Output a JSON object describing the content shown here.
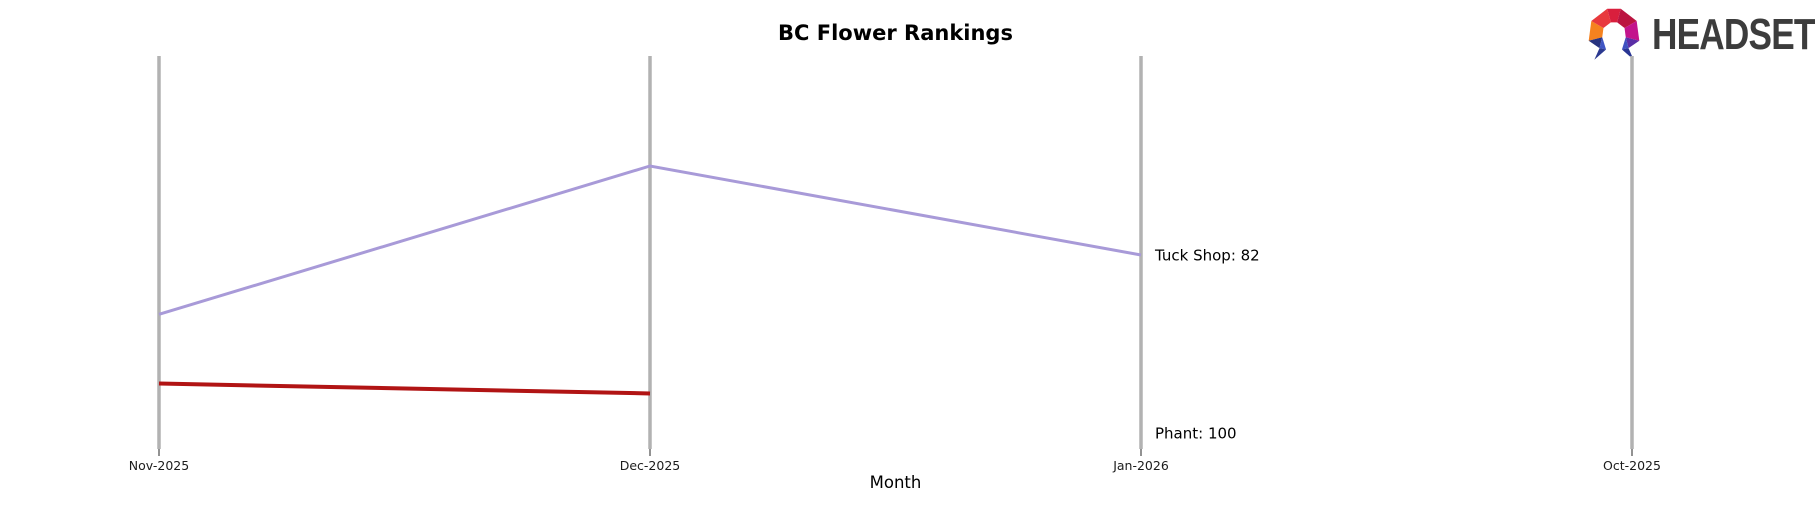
{
  "header": {
    "logo_text": "HEADSET"
  },
  "chart_data": {
    "type": "line",
    "variant": "bump-ranking",
    "title": "BC Flower Rankings",
    "xlabel": "Month",
    "ylabel": "",
    "categories": [
      "Nov-2025",
      "Dec-2025",
      "Jan-2026",
      "Oct-2025"
    ],
    "y_axis": {
      "visible": false,
      "direction": "higher-rank-number-is-lower"
    },
    "grid": "vertical-category-axes-only",
    "legend_position": "none",
    "axis_color": "#b2b2b2",
    "tick_color": "#4a4a4a",
    "tick_label_color": "#1c1c1c",
    "series": [
      {
        "name": "Tuck Shop",
        "color": "#a89ad8",
        "stroke_width": 3,
        "points": [
          {
            "category": "Nov-2025",
            "rank": 88
          },
          {
            "category": "Dec-2025",
            "rank": 73
          },
          {
            "category": "Jan-2026",
            "rank": 82
          }
        ],
        "end_label": {
          "text": "Tuck Shop: 82",
          "category": "Jan-2026",
          "rank": 82
        }
      },
      {
        "name": "Phant",
        "color": "#b11414",
        "stroke_width": 4,
        "points": [
          {
            "category": "Nov-2025",
            "rank": 95
          },
          {
            "category": "Dec-2025",
            "rank": 96
          }
        ],
        "end_label": {
          "text": "Phant: 100",
          "category": "Jan-2026",
          "rank": 100
        }
      }
    ]
  }
}
